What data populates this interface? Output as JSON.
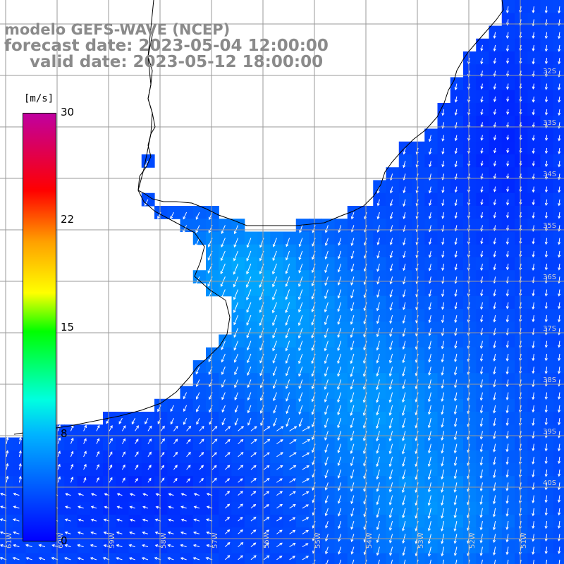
{
  "title_lines": {
    "model": "modelo GEFS-WAVE (NCEP)",
    "forecast": "forecast date: 2023-05-04 12:00:00",
    "valid": "valid date: 2023-05-12 18:00:00"
  },
  "legend": {
    "unit": "[m/s]",
    "ticks": [
      "30",
      "22",
      "15",
      "8",
      "0"
    ],
    "range": [
      0,
      30
    ]
  },
  "latitude_labels": [
    "32S",
    "33S",
    "34S",
    "35S",
    "36S",
    "37S",
    "38S",
    "39S",
    "40S"
  ],
  "longitude_labels": [
    "61W",
    "60W",
    "59W",
    "58W",
    "57W",
    "56W",
    "55W",
    "54W",
    "53W",
    "52W",
    "51W"
  ],
  "colors": {
    "land": "#ffffff",
    "grid": "#9a9a9a",
    "coast": "#000000",
    "arrow": "#ffffff"
  }
}
